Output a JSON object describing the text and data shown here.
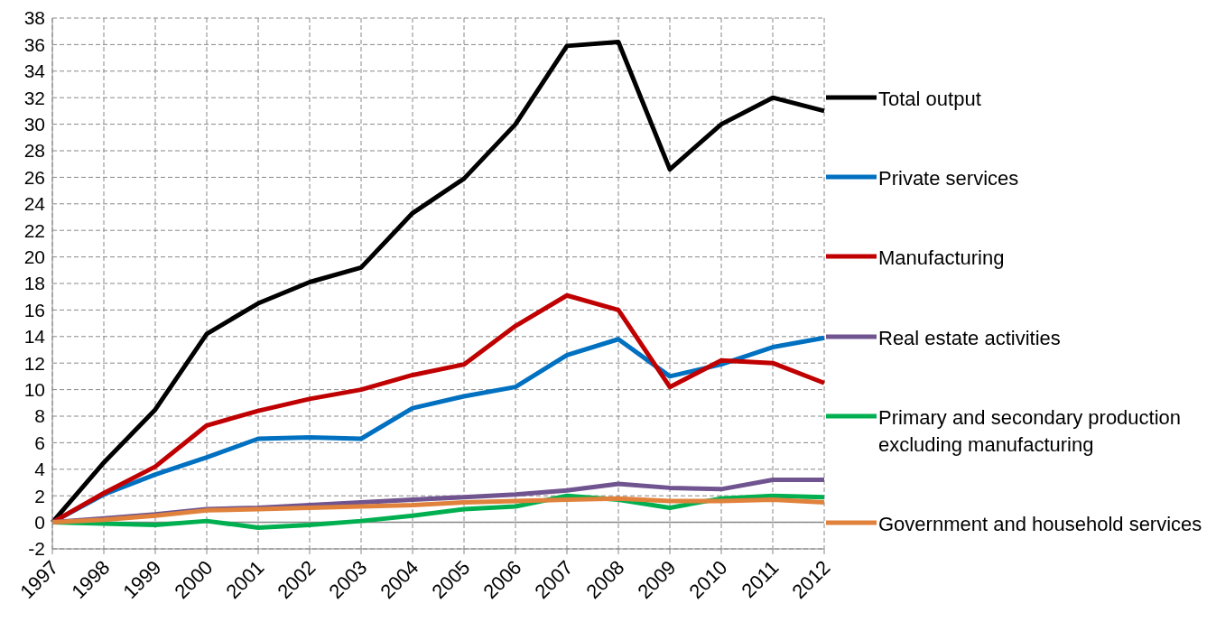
{
  "chart_data": {
    "type": "line",
    "categories": [
      "1997",
      "1998",
      "1999",
      "2000",
      "2001",
      "2002",
      "2003",
      "2004",
      "2005",
      "2006",
      "2007",
      "2008",
      "2009",
      "2010",
      "2011",
      "2012"
    ],
    "series": [
      {
        "name": "Total output",
        "color": "#000000",
        "values": [
          0,
          4.5,
          8.5,
          14.2,
          16.5,
          18.1,
          19.2,
          23.3,
          25.9,
          30.0,
          35.9,
          36.2,
          26.6,
          30.0,
          32.0,
          31.0
        ]
      },
      {
        "name": "Private services",
        "color": "#0070c0",
        "values": [
          0,
          2.1,
          3.6,
          4.9,
          6.3,
          6.4,
          6.3,
          8.6,
          9.5,
          10.2,
          12.6,
          13.8,
          11.0,
          11.9,
          13.2,
          13.9
        ]
      },
      {
        "name": "Manufacturing",
        "color": "#c00000",
        "values": [
          0,
          2.2,
          4.2,
          7.3,
          8.4,
          9.3,
          10.0,
          11.1,
          11.9,
          14.8,
          17.1,
          16.0,
          10.2,
          12.2,
          12.0,
          10.5
        ]
      },
      {
        "name": "Real estate activities",
        "color": "#70548f",
        "values": [
          0,
          0.3,
          0.6,
          1.0,
          1.1,
          1.3,
          1.5,
          1.7,
          1.9,
          2.1,
          2.4,
          2.9,
          2.6,
          2.5,
          3.2,
          3.2
        ]
      },
      {
        "name": "Primary and secondary production excluding manufacturing",
        "color": "#00b050",
        "values": [
          0,
          -0.1,
          -0.2,
          0.1,
          -0.4,
          -0.2,
          0.1,
          0.5,
          1.0,
          1.2,
          2.0,
          1.7,
          1.1,
          1.8,
          2.0,
          1.9
        ]
      },
      {
        "name": "Government and household services",
        "color": "#e0823c",
        "values": [
          0,
          0.2,
          0.5,
          0.9,
          1.0,
          1.1,
          1.2,
          1.3,
          1.5,
          1.6,
          1.7,
          1.8,
          1.6,
          1.6,
          1.7,
          1.5
        ]
      }
    ],
    "ylim": [
      -2,
      38
    ],
    "yticks": [
      -2,
      0,
      2,
      4,
      6,
      8,
      10,
      12,
      14,
      16,
      18,
      20,
      22,
      24,
      26,
      28,
      30,
      32,
      34,
      36,
      38
    ],
    "grid": true,
    "legend": "right",
    "marker": "none",
    "line_style": "solid"
  }
}
